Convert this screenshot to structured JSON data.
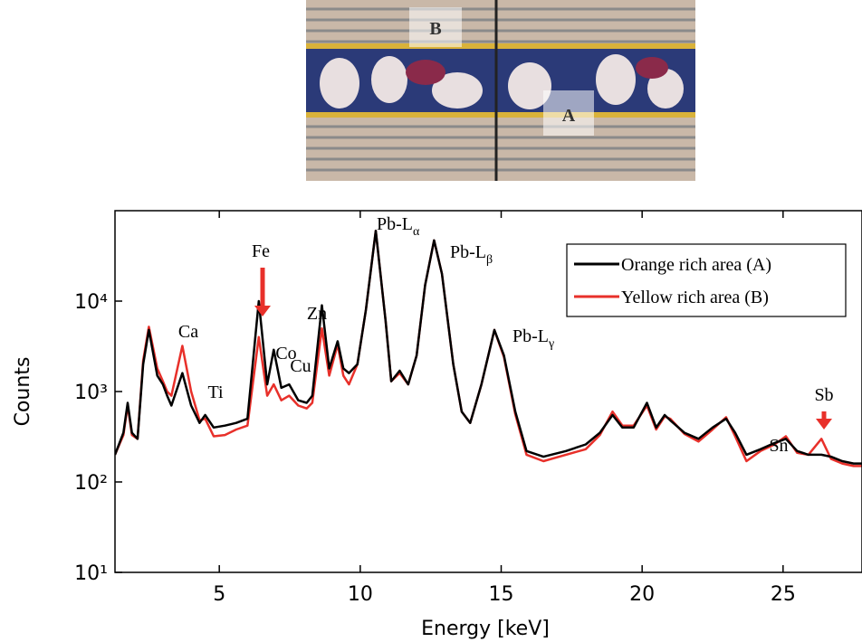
{
  "photo": {
    "labels": [
      "B",
      "A"
    ]
  },
  "chart_data": {
    "type": "line",
    "log_y": true,
    "grid": false,
    "legend": "upper right",
    "xlabel": "Energy [keV]",
    "ylabel": "Counts",
    "xlim": [
      1.3,
      27.8
    ],
    "xticks": [
      5,
      10,
      15,
      20,
      25
    ],
    "ylim": [
      10,
      100000
    ],
    "yticks": [
      {
        "value": 10,
        "label": "10¹"
      },
      {
        "value": 100,
        "label": "10²"
      },
      {
        "value": 1000,
        "label": "10³"
      },
      {
        "value": 10000,
        "label": "10⁴"
      }
    ],
    "annotations": [
      {
        "text": "Pb-L",
        "sub": "α"
      },
      {
        "text": "Pb-L",
        "sub": "β"
      },
      {
        "text": "Pb-L",
        "sub": "γ"
      },
      {
        "text": "Fe"
      },
      {
        "text": "Zn"
      },
      {
        "text": "Ca"
      },
      {
        "text": "Co"
      },
      {
        "text": "Cu"
      },
      {
        "text": "Ti"
      },
      {
        "text": "Sn"
      },
      {
        "text": "Sb"
      }
    ],
    "x": [
      1.3,
      1.6,
      1.75,
      1.9,
      2.1,
      2.3,
      2.5,
      2.8,
      3.0,
      3.15,
      3.3,
      3.69,
      4.0,
      4.3,
      4.5,
      4.8,
      5.2,
      5.6,
      6.0,
      6.4,
      6.7,
      6.93,
      7.2,
      7.48,
      7.8,
      8.1,
      8.3,
      8.64,
      8.9,
      9.2,
      9.4,
      9.6,
      9.9,
      10.2,
      10.55,
      10.9,
      11.1,
      11.4,
      11.7,
      12.0,
      12.3,
      12.62,
      12.9,
      13.3,
      13.6,
      13.9,
      14.3,
      14.76,
      15.1,
      15.5,
      15.9,
      16.5,
      17.3,
      18.0,
      18.5,
      18.95,
      19.3,
      19.7,
      20.17,
      20.5,
      20.8,
      21.0,
      21.5,
      22.0,
      22.5,
      22.98,
      23.3,
      23.7,
      24.2,
      24.7,
      25.1,
      25.5,
      25.9,
      26.36,
      26.7,
      27.1,
      27.5,
      27.8
    ],
    "series": [
      {
        "name": "Orange rich area (A)",
        "color": "#000000",
        "values": [
          200,
          350,
          750,
          350,
          300,
          2000,
          4800,
          1500,
          1200,
          900,
          700,
          1600,
          700,
          450,
          550,
          400,
          420,
          450,
          500,
          10000,
          1200,
          2900,
          1100,
          1200,
          800,
          750,
          900,
          9000,
          1800,
          3600,
          1800,
          1600,
          2000,
          8000,
          60000,
          6000,
          1300,
          1700,
          1200,
          2500,
          15000,
          47000,
          20000,
          2000,
          600,
          450,
          1200,
          4800,
          2500,
          600,
          220,
          190,
          220,
          260,
          350,
          550,
          400,
          400,
          750,
          400,
          550,
          480,
          350,
          300,
          400,
          500,
          350,
          200,
          230,
          270,
          300,
          220,
          200,
          200,
          190,
          170,
          160,
          160
        ]
      },
      {
        "name": "Yellow rich area (B)",
        "color": "#e8302a",
        "values": [
          200,
          330,
          700,
          330,
          300,
          2200,
          5200,
          1800,
          1300,
          1000,
          900,
          3200,
          1000,
          480,
          500,
          320,
          330,
          380,
          420,
          4000,
          900,
          1200,
          800,
          900,
          700,
          650,
          750,
          5000,
          1500,
          3300,
          1500,
          1200,
          2000,
          8000,
          60000,
          6000,
          1300,
          1600,
          1200,
          2500,
          15000,
          47000,
          20000,
          2000,
          600,
          450,
          1200,
          4800,
          2400,
          560,
          200,
          170,
          200,
          230,
          330,
          600,
          420,
          420,
          700,
          380,
          530,
          500,
          340,
          280,
          380,
          520,
          320,
          170,
          220,
          260,
          320,
          210,
          200,
          300,
          180,
          160,
          150,
          150
        ]
      }
    ]
  }
}
